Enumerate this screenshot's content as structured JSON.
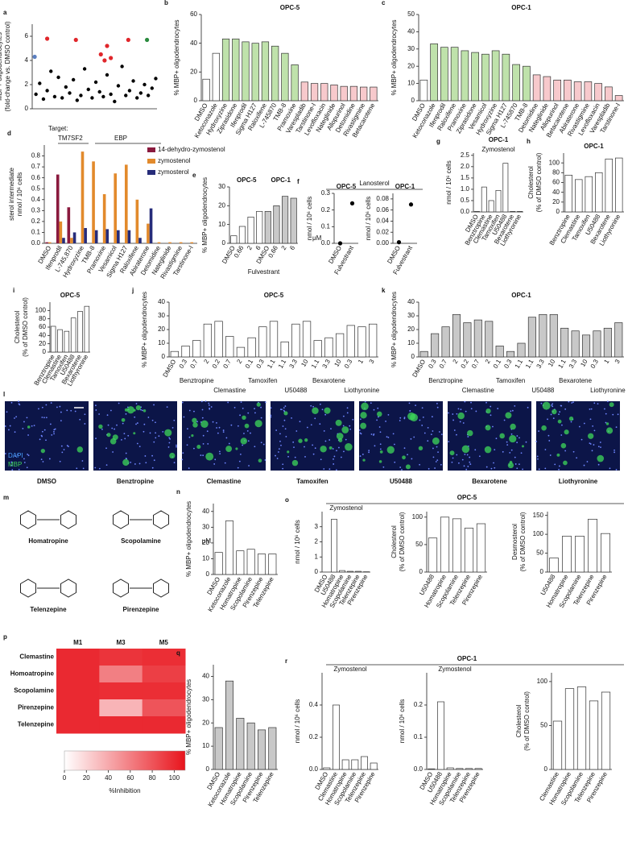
{
  "chart_data": [
    {
      "panel": "a",
      "type": "scatter",
      "ylabel": [
        "MBP+ oligodendrocytes",
        "(fold-change vs. DMSO control)"
      ],
      "xlim": [
        0,
        100
      ],
      "ylim": [
        0,
        7
      ],
      "yticks": [
        0,
        2,
        4,
        6
      ],
      "series": [
        {
          "color": "#000000",
          "x": [
            3,
            6,
            9,
            12,
            15,
            18,
            21,
            24,
            27,
            30,
            33,
            36,
            39,
            42,
            45,
            48,
            51,
            54,
            57,
            60,
            63,
            66,
            69,
            72,
            75,
            78,
            81,
            84,
            87,
            90,
            93,
            96,
            99
          ],
          "values": [
            1.2,
            2.1,
            0.8,
            1.5,
            3.1,
            1.0,
            2.6,
            0.9,
            1.8,
            1.3,
            2.4,
            0.7,
            1.1,
            3.3,
            1.6,
            0.9,
            2.2,
            1.4,
            1.0,
            2.8,
            1.2,
            0.6,
            1.9,
            3.5,
            1.1,
            1.5,
            2.3,
            0.9,
            1.3,
            2.0,
            1.1,
            1.7,
            2.5
          ]
        },
        {
          "color": "#e0262b",
          "x": [
            12,
            35,
            55,
            58,
            60,
            63,
            77
          ],
          "values": [
            5.8,
            5.7,
            4.5,
            4.0,
            5.2,
            4.2,
            5.7
          ]
        },
        {
          "color": "#2a8a3e",
          "x": [
            92
          ],
          "values": [
            5.7
          ]
        },
        {
          "color": "#5b7fc0",
          "x": [
            2
          ],
          "values": [
            4.3
          ]
        }
      ]
    },
    {
      "panel": "b",
      "type": "bar",
      "title": "OPC-5",
      "ylabel": [
        "% MBP+ oligodendrocytes"
      ],
      "ylim": [
        0,
        60
      ],
      "yticks": [
        0,
        20,
        40,
        60
      ],
      "categories": [
        "DMSO",
        "Ketoconazole",
        "Hydroxyzine",
        "Ziprasidone",
        "Ifenprodil",
        "Sigma H127",
        "Raloxifene",
        "L-745870",
        "TMB-8",
        "Pramoxine",
        "Varespladib",
        "Tarstinone-l",
        "Levofloxacin",
        "Nateglinide",
        "Allopurinol",
        "Detomidine",
        "Rivastigmine",
        "Betacarotene"
      ],
      "values": [
        15,
        33,
        43,
        43,
        41,
        40,
        41,
        38,
        33,
        25,
        13,
        12,
        12,
        11,
        10,
        10,
        9.5,
        9.5
      ],
      "bar_colors": [
        "#ffffff",
        "#ffffff",
        "#bfe2ab",
        "#bfe2ab",
        "#bfe2ab",
        "#bfe2ab",
        "#bfe2ab",
        "#bfe2ab",
        "#bfe2ab",
        "#bfe2ab",
        "#f7c9cc",
        "#f7c9cc",
        "#f7c9cc",
        "#f7c9cc",
        "#f7c9cc",
        "#f7c9cc",
        "#f7c9cc",
        "#f7c9cc"
      ]
    },
    {
      "panel": "c",
      "type": "bar",
      "title": "OPC-1",
      "ylabel": [
        "% MBP+ oligodendrocytes"
      ],
      "ylim": [
        0,
        50
      ],
      "yticks": [
        0,
        10,
        20,
        30,
        40,
        50
      ],
      "categories": [
        "DMSO",
        "Ketoconazole",
        "Ifenprodil",
        "Raloxifene",
        "Pramoxine",
        "Ziprasidone",
        "Vesamicol",
        "Hydroxyzine",
        "Sigma H127",
        "L-745870",
        "TMB-8",
        "Detomidine",
        "Nateglinide",
        "Allopurinol",
        "Betacarotene",
        "Abiraterone",
        "Rivastigmine",
        "Levofloxacin",
        "Varespladib",
        "Tarstinone-l"
      ],
      "values": [
        12,
        33,
        31,
        31,
        29,
        28,
        27,
        29,
        27,
        21,
        20,
        15,
        14,
        12,
        12,
        11,
        11,
        10,
        8,
        3
      ],
      "bar_colors": [
        "#ffffff",
        "#bfe2ab",
        "#bfe2ab",
        "#bfe2ab",
        "#bfe2ab",
        "#bfe2ab",
        "#bfe2ab",
        "#bfe2ab",
        "#bfe2ab",
        "#bfe2ab",
        "#bfe2ab",
        "#f7c9cc",
        "#f7c9cc",
        "#f7c9cc",
        "#f7c9cc",
        "#f7c9cc",
        "#f7c9cc",
        "#f7c9cc",
        "#f7c9cc",
        "#f7c9cc"
      ]
    },
    {
      "panel": "d",
      "type": "grouped_bar",
      "ylabel": [
        "sterol intermediate",
        "nmol / 10⁶ cells"
      ],
      "ylim": [
        0,
        0.9
      ],
      "yticks": [
        {
          "value": 0,
          "label": "0.0"
        },
        0.1,
        0.2,
        0.3,
        0.4,
        0.5,
        0.6,
        0.7,
        0.8
      ],
      "legend": "upper right",
      "annotations": [
        "Target:",
        "TM7SF2",
        "EBP"
      ],
      "categories": [
        "DMSO",
        "Ifenprodil",
        "L-745,870",
        "Hydroxyzine",
        "TMB-8",
        "Pramoxine",
        "Vesamicol",
        "Sigma H127",
        "Raloxifene",
        "Abiraterone",
        "Detomidine",
        "Nateglinide",
        "Rivastigmine",
        "Tarstinone-l"
      ],
      "series": [
        {
          "name": "14-dehydro-zymostenol",
          "color": "#8a1a3e",
          "values": [
            0.01,
            0.63,
            0.33,
            0,
            0,
            0,
            0,
            0,
            0,
            0,
            0,
            0,
            0,
            0
          ]
        },
        {
          "name": "zymostenol",
          "color": "#e28a2c",
          "values": [
            0.01,
            0.2,
            0.05,
            0.84,
            0.75,
            0.45,
            0.64,
            0.72,
            0.4,
            0.18,
            0.01,
            0.01,
            0.01,
            0.01
          ]
        },
        {
          "name": "zymosterol",
          "color": "#262c7a",
          "values": [
            0,
            0.05,
            0.1,
            0.14,
            0.12,
            0.13,
            0.12,
            0.12,
            0.05,
            0.32,
            0,
            0,
            0,
            0
          ]
        }
      ]
    },
    {
      "panel": "e",
      "type": "bar",
      "subtitles": [
        "OPC-5",
        "OPC-1"
      ],
      "ylabel": [
        "% MBP+ oligodendrocytes"
      ],
      "xlabel": "Fulvestrant",
      "annotations": [
        "μM"
      ],
      "ylim": [
        0,
        30
      ],
      "yticks": [
        0,
        10,
        20,
        30
      ],
      "categories": [
        "DMSO",
        "0.66",
        "2",
        "6",
        "DMSO",
        "0.66",
        "2",
        "6"
      ],
      "values": [
        4,
        9,
        14,
        17,
        17,
        20,
        25,
        24
      ],
      "bar_colors": [
        "#ffffff",
        "#ffffff",
        "#ffffff",
        "#ffffff",
        "#c8c8c8",
        "#c8c8c8",
        "#c8c8c8",
        "#c8c8c8"
      ]
    },
    {
      "panel": "f",
      "type": "dot",
      "title": "OPC-5",
      "ylabel": [
        "nmol / 10⁶ cells"
      ],
      "ylim": [
        0,
        0.3
      ],
      "yticks": [
        {
          "value": 0,
          "label": "0.0"
        },
        0.1,
        0.2,
        0.3
      ],
      "categories": [
        "DMSO",
        "Fulvestrant"
      ],
      "values": [
        0,
        0.24
      ]
    },
    {
      "type": "dot",
      "title": "OPC-1",
      "ylabel": [
        "nmol / 10⁶ cells"
      ],
      "ylim": [
        0,
        0.09
      ],
      "yticks": [
        {
          "value": 0,
          "label": "0.00"
        },
        {
          "value": 0.02,
          "label": "0.02"
        },
        {
          "value": 0.04,
          "label": "0.04"
        },
        {
          "value": 0.06,
          "label": "0.06"
        },
        {
          "value": 0.08,
          "label": "0.08"
        }
      ],
      "categories": [
        "DMSO",
        "Fulvestrant"
      ],
      "values": [
        0.002,
        0.07
      ]
    },
    {
      "panel": "g",
      "type": "bar",
      "title": "OPC-1",
      "subtitle": "Zymostenol",
      "ylabel": [
        "nmol / 10⁶ cells"
      ],
      "ylim": [
        0,
        2.6
      ],
      "yticks": [
        {
          "value": 0,
          "label": "0.0"
        },
        0.5,
        {
          "value": 1,
          "label": "1.0"
        },
        1.5,
        {
          "value": 2,
          "label": "2.0"
        },
        2.5
      ],
      "color": "#ffffff",
      "categories": [
        "DMSO",
        "Benztropine",
        "Clemastine",
        "Tamoxifen",
        "U50488",
        "Bexarotene",
        "Liothyronine"
      ],
      "values": [
        0.02,
        1.1,
        0.5,
        0.95,
        2.15,
        0.02,
        0.02
      ]
    },
    {
      "panel": "h",
      "type": "bar",
      "title": "OPC-1",
      "ylabel": [
        "Cholesterol",
        "(% of DMSO control)"
      ],
      "ylim": [
        0,
        120
      ],
      "yticks": [
        0,
        20,
        40,
        60,
        80,
        100
      ],
      "color": "#ffffff",
      "categories": [
        "Benztropine",
        "Clemastine",
        "Tamoxifen",
        "U50488",
        "Bexarotene",
        "Liothyronine"
      ],
      "values": [
        75,
        66,
        72,
        80,
        108,
        110
      ]
    },
    {
      "panel": "i",
      "type": "bar",
      "title": "OPC-5",
      "ylabel": [
        "Cholesterol",
        "(% of DMSO control)"
      ],
      "ylim": [
        0,
        120
      ],
      "yticks": [
        0,
        20,
        40,
        60,
        80,
        100
      ],
      "color": "#ffffff",
      "categories": [
        "Benztropine",
        "Clemastine",
        "Tamoxifen",
        "U50488",
        "Bexarotene",
        "Liothyronine"
      ],
      "values": [
        62,
        54,
        50,
        82,
        98,
        110
      ]
    },
    {
      "panel": "j",
      "type": "bar",
      "title": "OPC-5",
      "ylabel": [
        "% MBP+ oligodendrocytes"
      ],
      "ylim": [
        0,
        40
      ],
      "yticks": [
        0,
        10,
        20,
        30,
        40
      ],
      "color": "#ffffff",
      "group_labels": [
        "Benztropine",
        "Clemastine",
        "Tamoxifen",
        "U50488",
        "Bexarotene",
        "Liothyronine"
      ],
      "categories": [
        "DMSO",
        "0.3",
        "0.7",
        "2",
        "0.2",
        "0.7",
        "2",
        "0.1",
        "0.3",
        "1.1",
        "1.1",
        "3.3",
        "10",
        "1.1",
        "3.3",
        "10",
        "0.3",
        "1",
        "3"
      ],
      "values": [
        4,
        8,
        12,
        24,
        26,
        15,
        7,
        14,
        22,
        26,
        11,
        24,
        26,
        12,
        14,
        17,
        23,
        22,
        24
      ]
    },
    {
      "panel": "k",
      "type": "bar",
      "title": "OPC-1",
      "ylabel": [
        "% MBP+ oligodendrocytes"
      ],
      "ylim": [
        0,
        40
      ],
      "yticks": [
        0,
        10,
        20,
        30,
        40
      ],
      "color": "#c8c8c8",
      "group_labels": [
        "Benztropine",
        "Clemastine",
        "Tamoxifen",
        "U50488",
        "Bexarotene",
        "Liothyronine"
      ],
      "categories": [
        "DMSO",
        "0.3",
        "0.7",
        "2",
        "0.2",
        "0.7",
        "2",
        "0.1",
        "0.3",
        "1.1",
        "1.1",
        "3.3",
        "10",
        "1.1",
        "3.3",
        "10",
        "0.3",
        "1",
        "3"
      ],
      "values": [
        4,
        17,
        22,
        31,
        25,
        27,
        26,
        8,
        4,
        10,
        29,
        31,
        31,
        21,
        19,
        16,
        19,
        21,
        25
      ]
    },
    {
      "panel": "n",
      "type": "bar",
      "ylabel": [
        "% MBP+ oligodendrocytes"
      ],
      "annotations": [
        "μM"
      ],
      "ylim": [
        0,
        45
      ],
      "yticks": [
        0,
        10,
        20,
        30,
        40
      ],
      "color": "#ffffff",
      "categories": [
        "DMSO",
        "Ketoconazole",
        "Homatropine",
        "Scopolamine",
        "Pirenzepine",
        "Telenzepine"
      ],
      "values": [
        14,
        34,
        15,
        16,
        13,
        13
      ]
    },
    {
      "panel": "o",
      "type": "bar",
      "subtitle": "Zymostenol",
      "ylabel": [
        "nmol / 10⁶ cells"
      ],
      "ylim": [
        0,
        4
      ],
      "yticks": [
        0,
        1,
        2,
        3
      ],
      "color": "#ffffff",
      "categories": [
        "DMSO",
        "U50488",
        "Homatropine",
        "Scopolamine",
        "Telenzepine",
        "Pirenzepine"
      ],
      "values": [
        0,
        3.5,
        0.1,
        0.05,
        0.05,
        0.02
      ]
    },
    {
      "type": "bar",
      "ylabel": [
        "Cholesterol",
        "(% of DMSO control)"
      ],
      "ylim": [
        0,
        110
      ],
      "yticks": [
        0,
        50,
        100
      ],
      "color": "#ffffff",
      "categories": [
        "U50488",
        "Homatropine",
        "Scopolamine",
        "Telenzepine",
        "Pirenzepine"
      ],
      "values": [
        62,
        100,
        97,
        80,
        88
      ]
    },
    {
      "type": "bar",
      "ylabel": [
        "Desmosterol",
        "(% of DMSO control)"
      ],
      "ylim": [
        0,
        160
      ],
      "yticks": [
        0,
        50,
        100,
        150
      ],
      "color": "#ffffff",
      "categories": [
        "U50488",
        "Homatropine",
        "Scopolamine",
        "Telenzepine",
        "Pirenzepine"
      ],
      "values": [
        37,
        95,
        95,
        140,
        102
      ]
    },
    {
      "panel": "p",
      "type": "heatmap",
      "rows": [
        "Clemastine",
        "Homoatropine",
        "Scopolamine",
        "Pirenzepine",
        "Telenzepine"
      ],
      "columns": [
        "M1",
        "M3",
        "M5"
      ],
      "values": [
        [
          100,
          95,
          98
        ],
        [
          100,
          60,
          90
        ],
        [
          100,
          98,
          98
        ],
        [
          100,
          35,
          80
        ],
        [
          100,
          100,
          100
        ]
      ],
      "vlim": [
        0,
        110
      ],
      "cticks": [
        0,
        20,
        40,
        60,
        80,
        100
      ],
      "clabel": "%Inhibition",
      "color": "#e8141c"
    },
    {
      "panel": "q",
      "type": "bar",
      "ylabel": [
        "% MBP+ oligodendrocytes"
      ],
      "ylim": [
        0,
        45
      ],
      "yticks": [
        0,
        10,
        20,
        30,
        40
      ],
      "color": "#c8c8c8",
      "categories": [
        "DMSO",
        "Ketoconazole",
        "Homatropine",
        "Scopolamine",
        "Pirenzepine",
        "Telenzepine"
      ],
      "values": [
        18,
        38,
        22,
        20,
        17,
        18
      ]
    },
    {
      "panel": "r",
      "type": "bar",
      "subtitle": "Zymostenol",
      "ylabel": [
        "nmol / 10⁶ cells"
      ],
      "ylim": [
        0,
        0.6
      ],
      "yticks": [
        {
          "value": 0,
          "label": "0.0"
        },
        0.2,
        0.4
      ],
      "color": "#ffffff",
      "categories": [
        "DMSO",
        "Clemastine",
        "Homatropine",
        "Scopolamine",
        "Telenzepine",
        "Pirenzepine"
      ],
      "values": [
        0.01,
        0.4,
        0.06,
        0.06,
        0.08,
        0.04
      ]
    },
    {
      "type": "bar",
      "subtitle": "Zymostenol",
      "ylabel": [
        "nmol / 10⁶ cells"
      ],
      "ylim": [
        0,
        0.3
      ],
      "yticks": [
        {
          "value": 0,
          "label": "0.0"
        },
        0.1,
        0.2
      ],
      "color": "#ffffff",
      "categories": [
        "DMSO",
        "U50488",
        "Homatropine",
        "Scopolamine",
        "Telenzepine",
        "Pirenzepine"
      ],
      "values": [
        0.002,
        0.21,
        0.005,
        0.003,
        0.003,
        0.003
      ]
    },
    {
      "type": "bar",
      "ylabel": [
        "Cholesterol",
        "(% of DMSO control)"
      ],
      "ylim": [
        0,
        110
      ],
      "yticks": [
        0,
        50,
        100
      ],
      "color": "#ffffff",
      "categories": [
        "Clemastine",
        "Homatropine",
        "Scopolamine",
        "Telenzepine",
        "Pirenzepine"
      ],
      "values": [
        55,
        92,
        94,
        78,
        88
      ]
    }
  ],
  "headers": [
    "Lanosterol",
    "OPC-5",
    "OPC-1"
  ],
  "micrographs": {
    "panel": "l",
    "labels": [
      "DMSO",
      "Benztropine",
      "Clemastine",
      "Tamoxifen",
      "U50488",
      "Bexarotene",
      "Liothyronine"
    ],
    "legend": [
      "DAPI",
      "MBP"
    ]
  },
  "structures": {
    "panel": "m",
    "names": [
      "Homatropine",
      "Scopolamine",
      "Telenzepine",
      "Pirenzepine"
    ]
  }
}
